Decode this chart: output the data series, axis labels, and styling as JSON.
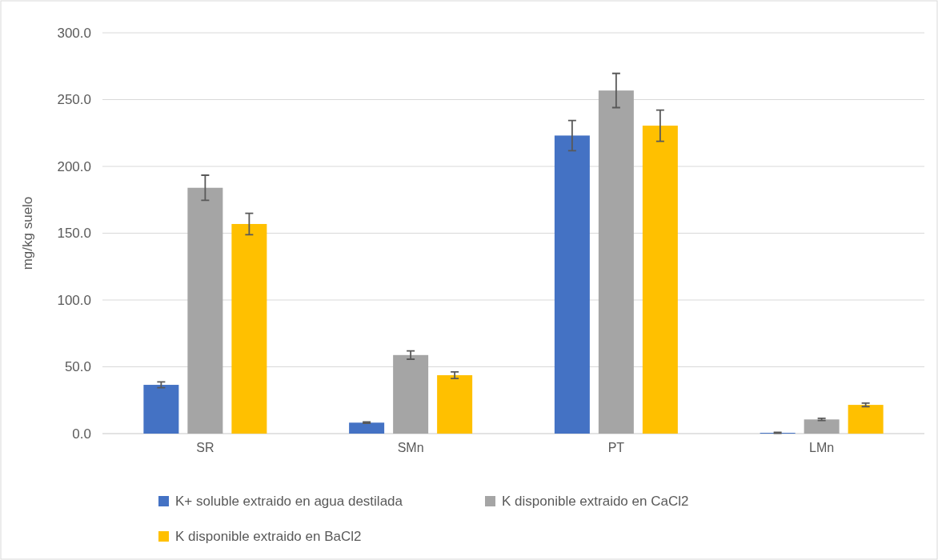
{
  "chart_data": {
    "type": "bar",
    "ylabel": "mg/kg suelo",
    "categories": [
      "SR",
      "SMn",
      "PT",
      "LMn"
    ],
    "series": [
      {
        "name": "K+ soluble extraido en agua destilada",
        "color": "#4472c4",
        "values": [
          36.5,
          8.2,
          223.1,
          0.6
        ],
        "errors": [
          2.2,
          0.5,
          11.3,
          0.3
        ]
      },
      {
        "name": "K disponible extraido en CaCl2",
        "color": "#a5a5a5",
        "values": [
          184.0,
          58.8,
          256.8,
          10.6
        ],
        "errors": [
          9.4,
          3.1,
          12.8,
          0.8
        ]
      },
      {
        "name": "K disponible extraido en BaCl2",
        "color": "#ffc000",
        "values": [
          156.9,
          43.7,
          230.5,
          21.5
        ],
        "errors": [
          8,
          2.5,
          11.7,
          1.3
        ]
      }
    ],
    "ylim": [
      0,
      300
    ],
    "yticks": [
      {
        "value": 0,
        "label": "0.0"
      },
      {
        "value": 50,
        "label": "50.0"
      },
      {
        "value": 100,
        "label": "100.0"
      },
      {
        "value": 150,
        "label": "150.0"
      },
      {
        "value": 200,
        "label": "200.0"
      },
      {
        "value": 250,
        "label": "250.0"
      },
      {
        "value": 300,
        "label": "300.0"
      }
    ],
    "grid": "y",
    "legend": "bottom"
  }
}
